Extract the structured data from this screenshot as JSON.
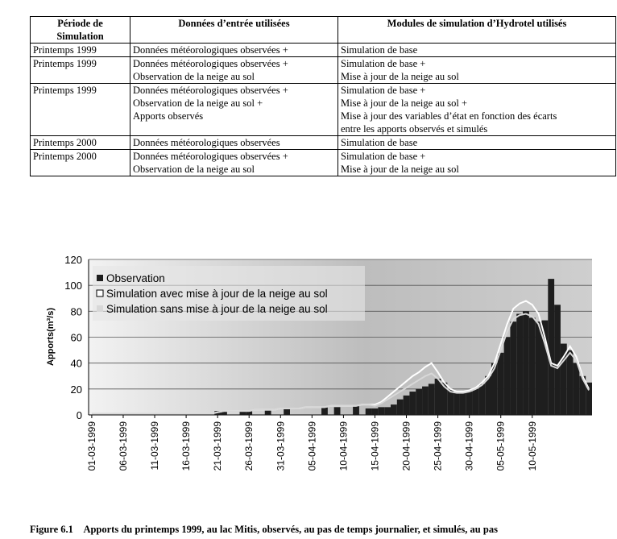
{
  "table": {
    "header": [
      [
        "Période de",
        "Simulation"
      ],
      [
        "Données d’entrée utilisées"
      ],
      [
        "Modules de simulation d’Hydrotel utilisés"
      ]
    ],
    "rows": [
      [
        [
          "Printemps 1999"
        ],
        [
          "Données météorologiques observées +"
        ],
        [
          "Simulation de base"
        ]
      ],
      [
        [
          "Printemps 1999"
        ],
        [
          "Données météorologiques observées +",
          "Observation de la neige au sol"
        ],
        [
          "Simulation de base +",
          "Mise à jour de la neige au sol"
        ]
      ],
      [
        [
          "Printemps 1999"
        ],
        [
          "Données météorologiques observées +",
          "Observation de la neige au sol +",
          "Apports observés"
        ],
        [
          "Simulation de base +",
          "Mise à jour de la neige au sol +",
          "Mise à jour des variables d’état en fonction des écarts",
          "entre les apports observés et simulés"
        ]
      ],
      [
        [
          "Printemps 2000"
        ],
        [
          "Données météorologiques observées"
        ],
        [
          "Simulation de base"
        ]
      ],
      [
        [
          "Printemps 2000"
        ],
        [
          "Données météorologiques observées +",
          "Observation de la neige au sol"
        ],
        [
          "Simulation de base +",
          "Mise à jour de la neige au sol"
        ]
      ]
    ]
  },
  "chart_data": {
    "type": "combo",
    "y_label": "Apports(m³/s)",
    "categories": [
      "01-03-1999",
      null,
      null,
      null,
      null,
      "06-03-1999",
      null,
      null,
      null,
      null,
      "11-03-1999",
      null,
      null,
      null,
      null,
      "16-03-1999",
      null,
      null,
      null,
      null,
      "21-03-1999",
      null,
      null,
      null,
      null,
      "26-03-1999",
      null,
      null,
      null,
      null,
      "31-03-1999",
      null,
      null,
      null,
      null,
      "05-04-1999",
      null,
      null,
      null,
      null,
      "10-04-1999",
      null,
      null,
      null,
      null,
      "15-04-1999",
      null,
      null,
      null,
      null,
      "20-04-1999",
      null,
      null,
      null,
      null,
      "25-04-1999",
      null,
      null,
      null,
      null,
      "30-04-1999",
      null,
      null,
      null,
      null,
      "05-05-1999",
      null,
      null,
      null,
      null,
      "10-05-1999",
      null,
      null,
      null,
      null,
      null,
      null,
      null,
      null,
      null
    ],
    "series": [
      {
        "name": "Observation",
        "color": "#1e1e1e",
        "kind": "bar",
        "values": [
          null,
          null,
          null,
          null,
          null,
          null,
          null,
          null,
          null,
          null,
          null,
          null,
          null,
          null,
          null,
          null,
          null,
          null,
          null,
          null,
          3,
          3,
          null,
          null,
          3,
          3,
          null,
          null,
          4,
          null,
          null,
          5,
          null,
          null,
          null,
          null,
          null,
          6,
          null,
          6,
          null,
          null,
          7,
          null,
          5,
          5,
          6,
          6,
          8,
          12,
          15,
          18,
          20,
          22,
          24,
          28,
          25,
          20,
          17,
          17,
          18,
          20,
          24,
          30,
          40,
          48,
          60,
          72,
          78,
          80,
          75,
          72,
          73,
          105,
          85,
          55,
          50,
          40,
          30,
          25
        ]
      },
      {
        "name": "Simulation avec mise à jour de la neige au sol",
        "color": "#ffffff",
        "kind": "line",
        "values": [
          1,
          1,
          1,
          1,
          1,
          1,
          1,
          1,
          1,
          1,
          1,
          1,
          1,
          1,
          1,
          1,
          1,
          1,
          1,
          1,
          2,
          3,
          3,
          3,
          3,
          3,
          4,
          4,
          4,
          4,
          5,
          5,
          5,
          5,
          6,
          6,
          6,
          6,
          7,
          7,
          7,
          7,
          7,
          8,
          8,
          8,
          10,
          14,
          18,
          22,
          26,
          30,
          33,
          37,
          40,
          33,
          25,
          20,
          18,
          18,
          19,
          21,
          25,
          30,
          40,
          55,
          70,
          82,
          86,
          88,
          85,
          78,
          60,
          40,
          38,
          45,
          53,
          45,
          30,
          20
        ]
      },
      {
        "name": "Simulation sans mise à jour de la neige au sol",
        "color": "#d8d8d8",
        "kind": "line",
        "values": [
          1,
          1,
          1,
          1,
          1,
          1,
          1,
          1,
          1,
          1,
          1,
          1,
          1,
          1,
          1,
          1,
          1,
          1,
          1,
          1,
          2,
          3,
          3,
          3,
          3,
          3,
          4,
          4,
          4,
          4,
          5,
          5,
          5,
          5,
          6,
          6,
          6,
          6,
          7,
          7,
          7,
          7,
          7,
          8,
          8,
          7,
          9,
          12,
          15,
          18,
          21,
          24,
          27,
          30,
          32,
          28,
          22,
          18,
          17,
          17,
          18,
          20,
          23,
          28,
          36,
          50,
          64,
          74,
          77,
          78,
          76,
          70,
          55,
          38,
          36,
          42,
          48,
          42,
          28,
          19
        ]
      }
    ],
    "ylim": [
      0,
      120
    ],
    "yticks": [
      0,
      20,
      40,
      60,
      80,
      100,
      120
    ],
    "grid": true
  },
  "caption": {
    "label": "Figure 6.1",
    "text": "Apports du printemps 1999, au lac Mitis, observés, au pas de temps journalier, et simulés, au pas"
  }
}
